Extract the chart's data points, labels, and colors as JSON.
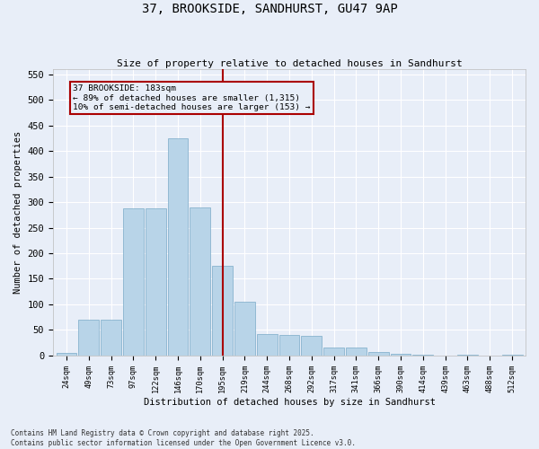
{
  "title": "37, BROOKSIDE, SANDHURST, GU47 9AP",
  "subtitle": "Size of property relative to detached houses in Sandhurst",
  "xlabel": "Distribution of detached houses by size in Sandhurst",
  "ylabel": "Number of detached properties",
  "categories": [
    "24sqm",
    "49sqm",
    "73sqm",
    "97sqm",
    "122sqm",
    "146sqm",
    "170sqm",
    "195sqm",
    "219sqm",
    "244sqm",
    "268sqm",
    "292sqm",
    "317sqm",
    "341sqm",
    "366sqm",
    "390sqm",
    "414sqm",
    "439sqm",
    "463sqm",
    "488sqm",
    "512sqm"
  ],
  "values": [
    5,
    70,
    70,
    288,
    288,
    425,
    290,
    175,
    105,
    42,
    40,
    38,
    15,
    15,
    7,
    3,
    1,
    0,
    1,
    0,
    1
  ],
  "bar_color": "#b8d4e8",
  "bar_edge_color": "#7aaac8",
  "bg_color": "#e8eef8",
  "grid_color": "#ffffff",
  "vline_x_index": 7,
  "vline_color": "#aa0000",
  "annotation_title": "37 BROOKSIDE: 183sqm",
  "annotation_line1": "← 89% of detached houses are smaller (1,315)",
  "annotation_line2": "10% of semi-detached houses are larger (153) →",
  "footer_line1": "Contains HM Land Registry data © Crown copyright and database right 2025.",
  "footer_line2": "Contains public sector information licensed under the Open Government Licence v3.0.",
  "ylim": [
    0,
    560
  ],
  "yticks": [
    0,
    50,
    100,
    150,
    200,
    250,
    300,
    350,
    400,
    450,
    500,
    550
  ]
}
